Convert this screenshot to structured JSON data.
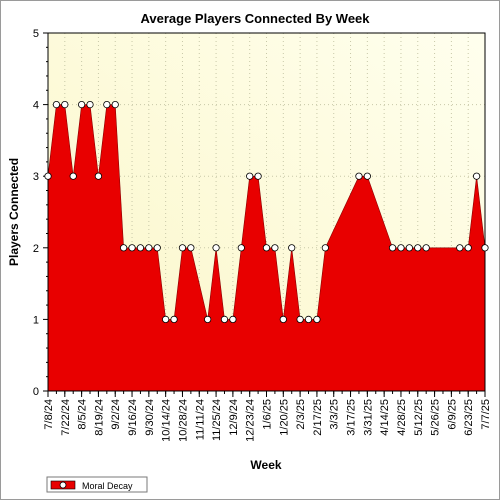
{
  "chart_data": {
    "type": "area",
    "title": "Average Players Connected By Week",
    "xlabel": "Week",
    "ylabel": "Players Connected",
    "ylim": [
      0,
      5
    ],
    "yticks": [
      "0",
      "1",
      "2",
      "3",
      "4",
      "5"
    ],
    "x": [
      "7/8/24",
      "7/15/24",
      "7/22/24",
      "7/29/24",
      "8/5/24",
      "8/12/24",
      "8/19/24",
      "8/26/24",
      "9/2/24",
      "9/9/24",
      "9/16/24",
      "9/23/24",
      "9/30/24",
      "10/7/24",
      "10/14/24",
      "10/21/24",
      "10/28/24",
      "11/4/24",
      "11/11/24",
      "11/18/24",
      "11/25/24",
      "12/2/24",
      "12/9/24",
      "12/16/24",
      "12/23/24",
      "12/30/24",
      "1/6/25",
      "1/13/25",
      "1/20/25",
      "1/27/25",
      "2/3/25",
      "2/10/25",
      "2/17/25",
      "2/24/25",
      "3/3/25",
      "3/10/25",
      "3/17/25",
      "3/24/25",
      "3/31/25",
      "4/7/25",
      "4/14/25",
      "4/21/25",
      "4/28/25",
      "5/5/25",
      "5/12/25",
      "5/19/25",
      "5/26/25",
      "6/2/25",
      "6/9/25",
      "6/16/25",
      "6/23/25",
      "6/30/25",
      "7/7/25"
    ],
    "xtick_labels": [
      "7/8/24",
      "7/22/24",
      "8/5/24",
      "8/19/24",
      "9/2/24",
      "9/16/24",
      "9/30/24",
      "10/14/24",
      "10/28/24",
      "11/11/24",
      "11/25/24",
      "12/9/24",
      "12/23/24",
      "1/6/25",
      "1/20/25",
      "2/3/25",
      "2/17/25",
      "3/3/25",
      "3/17/25",
      "3/31/25",
      "4/14/25",
      "4/28/25",
      "5/12/25",
      "5/26/25",
      "6/9/25",
      "6/23/25",
      "7/7/25"
    ],
    "series": [
      {
        "name": "Moral Decay",
        "color": "#e80000",
        "values": [
          3,
          4,
          4,
          3,
          4,
          4,
          3,
          4,
          4,
          2,
          2,
          2,
          2,
          2,
          1,
          1,
          2,
          2,
          null,
          1,
          2,
          1,
          1,
          2,
          3,
          3,
          2,
          2,
          1,
          2,
          1,
          1,
          1,
          2,
          null,
          null,
          null,
          3,
          3,
          null,
          null,
          2,
          2,
          2,
          2,
          2,
          null,
          null,
          null,
          2,
          2,
          3,
          2
        ]
      }
    ],
    "grid": true,
    "plot_background": "#ffffe0",
    "legend": "bottom-left"
  }
}
